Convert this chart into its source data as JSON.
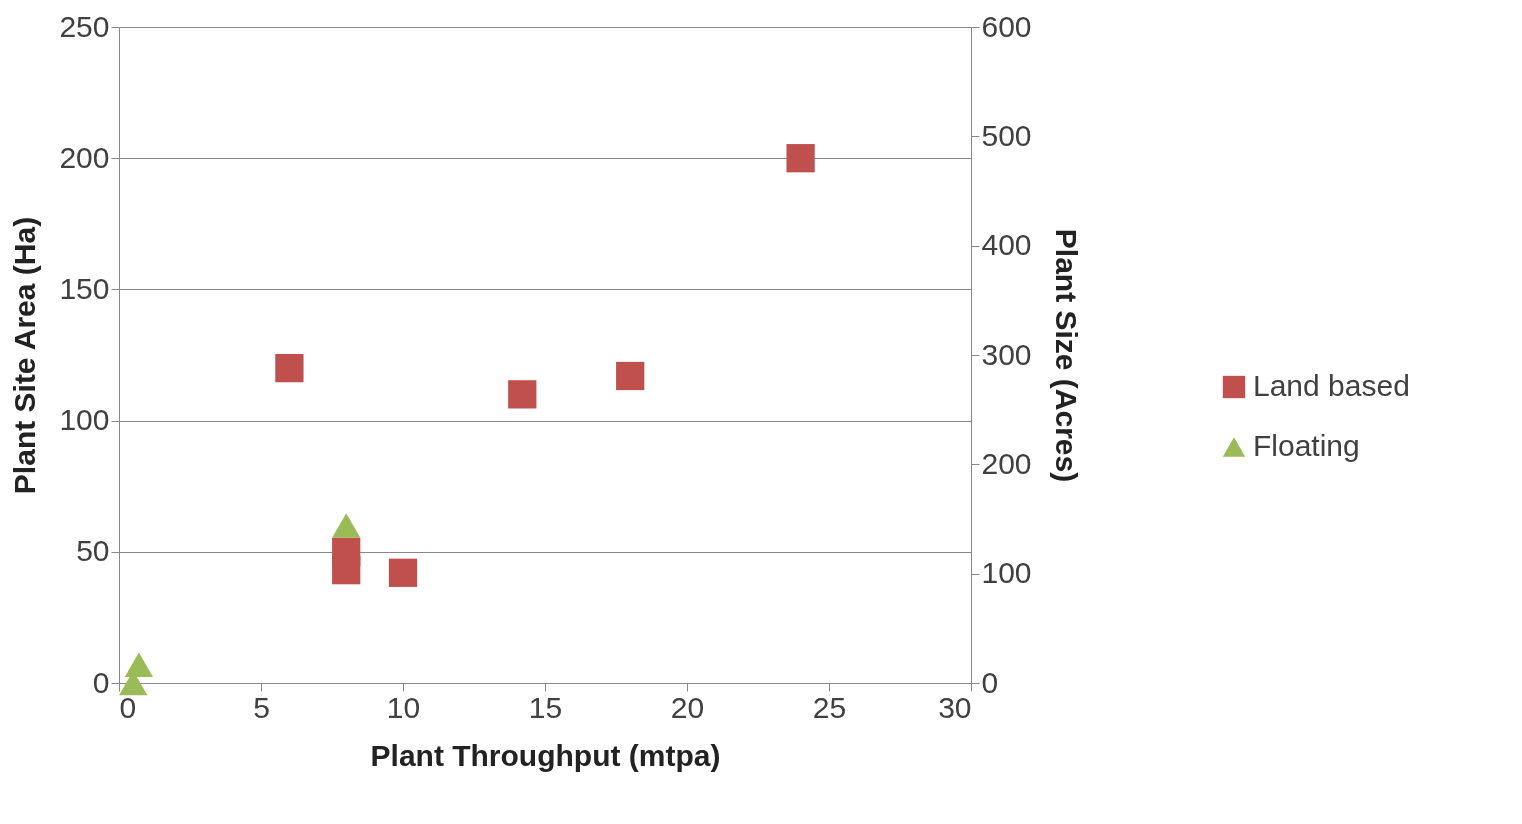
{
  "chart_data": {
    "type": "scatter",
    "xlabel": "Plant Throughput (mtpa)",
    "ylabel": "Plant Site Area (Ha)",
    "y2label": "Plant Size (Acres)",
    "xlim": [
      0,
      30
    ],
    "xticks": [
      0,
      5,
      10,
      15,
      20,
      25,
      30
    ],
    "ylim": [
      0,
      250
    ],
    "yticks": [
      0,
      50,
      100,
      150,
      200,
      250
    ],
    "y2lim": [
      0,
      600
    ],
    "y2ticks": [
      0,
      100,
      200,
      300,
      400,
      500,
      600
    ],
    "grid": "y",
    "legend": "right",
    "series": [
      {
        "name": "Land based",
        "color": "#c0504d",
        "marker": "square",
        "x": [
          6,
          8,
          8,
          10,
          14.2,
          18,
          24
        ],
        "values": [
          120,
          50,
          43,
          42,
          110,
          117,
          200
        ]
      },
      {
        "name": "Floating",
        "color": "#9bbb59",
        "marker": "triangle",
        "x": [
          0.5,
          0.7,
          8
        ],
        "values": [
          0,
          7,
          60
        ]
      }
    ]
  }
}
